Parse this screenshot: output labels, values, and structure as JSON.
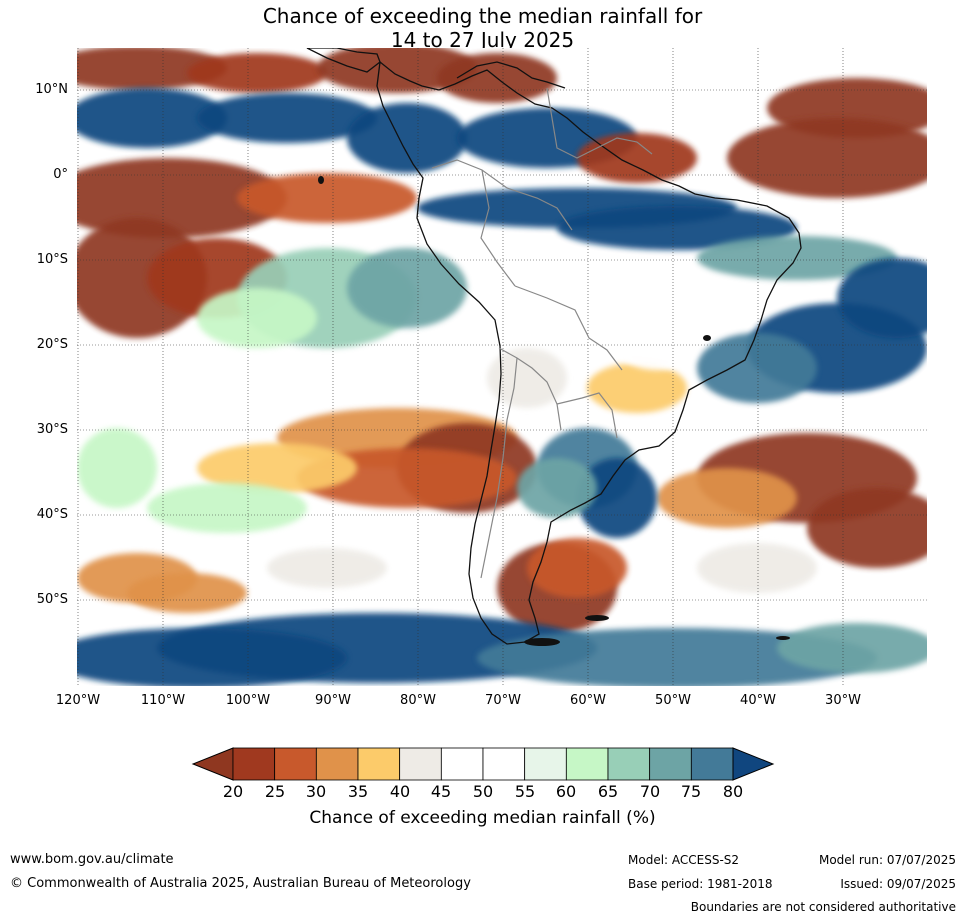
{
  "title": {
    "line1": "Chance of exceeding the median rainfall for",
    "line2": "14 to 27 July 2025"
  },
  "lat_labels": [
    "10°N",
    "0°",
    "10°S",
    "20°S",
    "30°S",
    "40°S",
    "50°S"
  ],
  "lon_labels": [
    "120°W",
    "110°W",
    "100°W",
    "90°W",
    "80°W",
    "70°W",
    "60°W",
    "50°W",
    "40°W",
    "30°W"
  ],
  "colorbar": {
    "ticks": [
      "20",
      "25",
      "30",
      "35",
      "40",
      "45",
      "50",
      "55",
      "60",
      "65",
      "70",
      "75",
      "80"
    ],
    "colors": [
      "#a0391f",
      "#c8592c",
      "#e0924a",
      "#fccb6a",
      "#eeebe6",
      "#ffffff",
      "#ffffff",
      "#e7f5e9",
      "#c6f7c6",
      "#98cfb7",
      "#6da4a5",
      "#437a98"
    ],
    "under_color": "#8f3720",
    "over_color": "#10467f",
    "label": "Chance of exceeding median rainfall (%)"
  },
  "footer": {
    "url": "www.bom.gov.au/climate",
    "copyright": "© Commonwealth of Australia 2025, Australian Bureau of Meteorology",
    "model": "Model: ACCESS-S2",
    "base_period": "Base period: 1981-2018",
    "model_run": "Model run: 07/07/2025",
    "issued": "Issued: 09/07/2025",
    "disclaimer": "Boundaries are not considered authoritative"
  }
}
